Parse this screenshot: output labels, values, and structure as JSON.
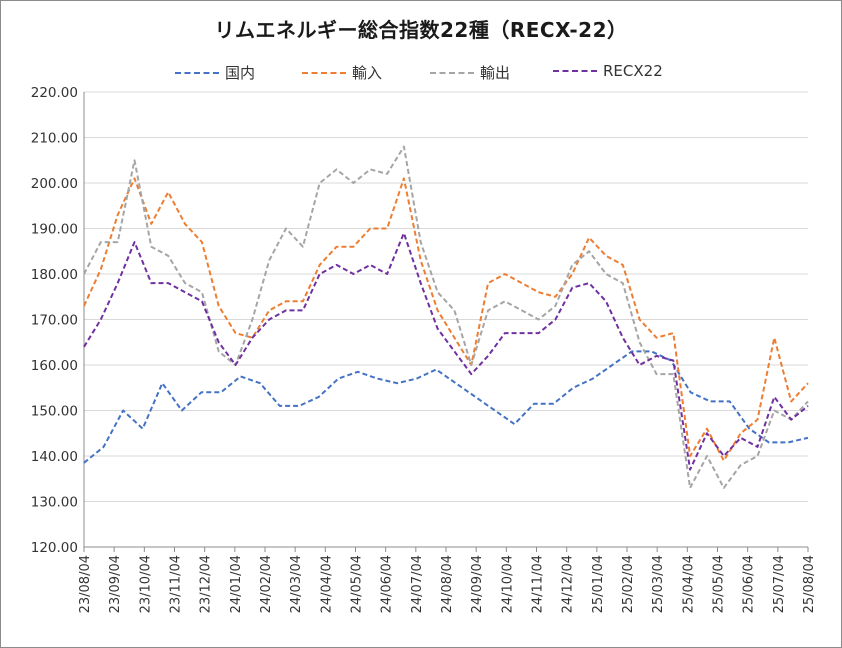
{
  "chart_data": {
    "type": "line",
    "title": "リムエネルギー総合指数22種（RECX-22）",
    "ylim": [
      120,
      220
    ],
    "y_ticks": [
      "220.00",
      "210.00",
      "200.00",
      "190.00",
      "180.00",
      "170.00",
      "160.00",
      "150.00",
      "140.00",
      "130.00",
      "120.00"
    ],
    "x_ticks": [
      "23/08/04",
      "23/09/04",
      "23/10/04",
      "23/11/04",
      "23/12/04",
      "24/01/04",
      "24/02/04",
      "24/03/04",
      "24/04/04",
      "24/05/04",
      "24/06/04",
      "24/07/04",
      "24/08/04",
      "24/09/04",
      "24/10/04",
      "24/11/04",
      "24/12/04",
      "25/01/04",
      "25/02/04",
      "25/03/04",
      "25/04/04",
      "25/05/04",
      "25/06/04",
      "25/07/04",
      "25/08/04"
    ],
    "grid": "horizontal",
    "legend_position": "top",
    "series": [
      {
        "name": "国内",
        "color": "#4472c4",
        "values": [
          138.5,
          142,
          150,
          146,
          156,
          150,
          154,
          154,
          157.5,
          156,
          151,
          151,
          153,
          157,
          158.5,
          157,
          156,
          157,
          159,
          156,
          153,
          150,
          147,
          151.5,
          151.5,
          155,
          157,
          160,
          163,
          163,
          161,
          154,
          152,
          152,
          146,
          143,
          143,
          144
        ]
      },
      {
        "name": "輸入",
        "color": "#ed7d31",
        "values": [
          173,
          181,
          193,
          201,
          191,
          198,
          191,
          187,
          173,
          167,
          166,
          172,
          174,
          174,
          182,
          186,
          186,
          190,
          190,
          201,
          183,
          172,
          166,
          160,
          178,
          180,
          178,
          176,
          175,
          180,
          188,
          184,
          182,
          170,
          166,
          167,
          140,
          146,
          139,
          145,
          148,
          166,
          152,
          156
        ]
      },
      {
        "name": "輸出",
        "color": "#a5a5a5",
        "values": [
          180,
          187,
          187,
          205,
          186,
          184,
          178,
          176,
          163,
          160,
          170,
          183,
          190,
          186,
          200,
          203,
          200,
          203,
          202,
          208,
          187,
          176,
          172,
          160,
          172,
          174,
          172,
          170,
          173,
          182,
          185,
          180,
          178,
          165,
          158,
          158,
          133,
          140,
          133,
          138,
          140,
          150,
          148,
          152
        ]
      },
      {
        "name": "RECX22",
        "color": "#7030a0",
        "values": [
          164,
          170,
          178,
          187,
          178,
          178,
          176,
          174,
          165,
          160,
          166,
          170,
          172,
          172,
          180,
          182,
          180,
          182,
          180,
          189,
          178,
          168,
          163,
          158,
          162,
          167,
          167,
          167,
          170,
          177,
          178,
          174,
          166,
          160,
          162,
          161,
          137,
          145,
          140,
          144,
          142,
          153,
          148,
          151
        ]
      }
    ]
  }
}
